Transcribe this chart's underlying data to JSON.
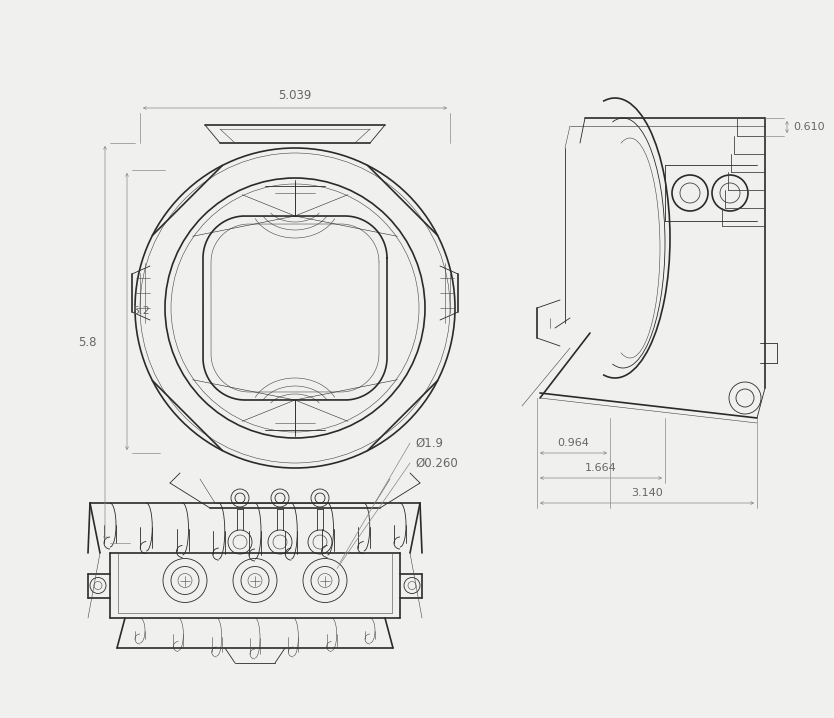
{
  "bg_color": "#f0f0ee",
  "line_color": "#2a2a2a",
  "line_color2": "#444444",
  "dim_color": "#888888",
  "dim_text_color": "#666666",
  "dim_5039_label": "5.039",
  "dim_58_label": "5.8",
  "dim_52_label": "5.2",
  "dim_0610_label": "0.610",
  "dim_0964_label": "0.964",
  "dim_1664_label": "1.664",
  "dim_3140_label": "3.140",
  "dim_d19_label": "Ø1.9",
  "dim_d0260_label": "Ø0.260"
}
